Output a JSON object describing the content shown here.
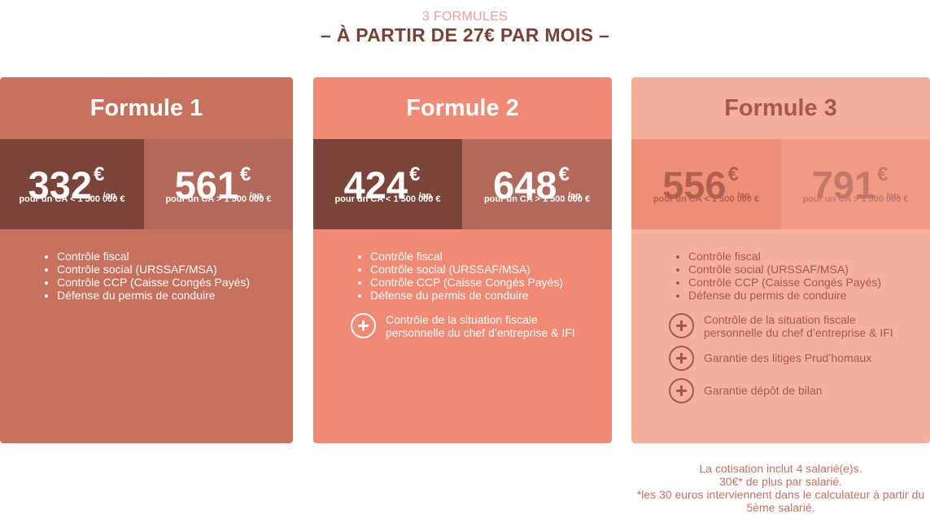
{
  "header": {
    "kicker": "3 FORMULES",
    "headline": "– À PARTIR DE 27€ PAR MOIS –"
  },
  "cards": [
    {
      "title": "Formule 1",
      "prices": [
        {
          "amount": "332",
          "currency": "€",
          "period": "/an",
          "caption": "pour un CA < 1 500 000 €"
        },
        {
          "amount": "561",
          "currency": "€",
          "period": "/an",
          "caption": "pour un CA > 1 500 000 €"
        }
      ],
      "features": [
        "Contrôle fiscal",
        "Contrôle social (URSSAF/MSA)",
        "Contrôle CCP (Caisse Congés Payés)",
        "Défense du permis de conduire"
      ]
    },
    {
      "title": "Formule 2",
      "prices": [
        {
          "amount": "424",
          "currency": "€",
          "period": "/an",
          "caption": "pour un CA < 1 500 000 €"
        },
        {
          "amount": "648",
          "currency": "€",
          "period": "/an",
          "caption": "pour un CA > 1 500 000 €"
        }
      ],
      "features": [
        "Contrôle fiscal",
        "Contrôle social (URSSAF/MSA)",
        "Contrôle CCP (Caisse Congés Payés)",
        "Défense du permis de conduire"
      ],
      "extras": [
        "Contrôle de la situation fiscale personnelle du chef d’entreprise & IFI"
      ]
    },
    {
      "title": "Formule 3",
      "prices": [
        {
          "amount": "556",
          "currency": "€",
          "period": "/an",
          "caption": "pour un CA < 1 500 000 €"
        },
        {
          "amount": "791",
          "currency": "€",
          "period": "/an",
          "caption": "pour un CA > 1 500 000 €"
        }
      ],
      "features": [
        "Contrôle fiscal",
        "Contrôle social (URSSAF/MSA)",
        "Contrôle CCP (Caisse Congés Payés)",
        "Défense du permis de conduire"
      ],
      "extras": [
        "Contrôle de la situation fiscale personnelle du chef d’entreprise & IFI",
        "Garantie des litiges Prud’homaux",
        "Garantie dépôt de bilan"
      ]
    }
  ],
  "footnote": {
    "line1": "La cotisation inclut 4 salarié(e)s.",
    "line2": "30€* de plus par salarié.",
    "line3": "*les 30 euros interviennent dans le calculateur à partir du 5ème salarié."
  },
  "colors": {
    "card1_bg": "#c7705e",
    "card2_bg": "#f08a74",
    "card3_bg": "#f5b09b",
    "price_dark": "#7a4438",
    "headline": "#7a3f35"
  },
  "icons": [
    "plus-circle-icon"
  ]
}
